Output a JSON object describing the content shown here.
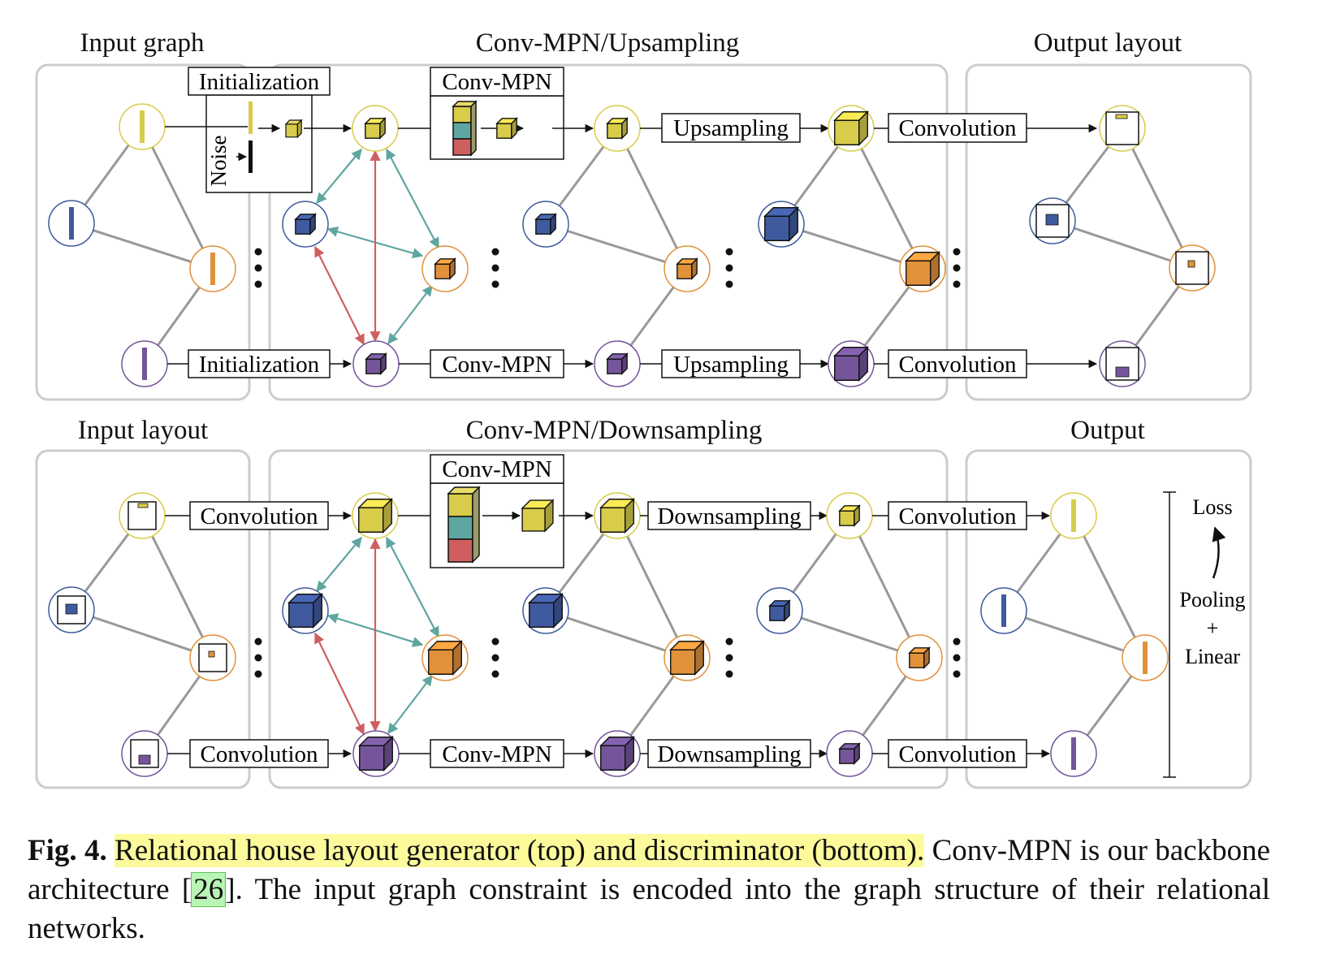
{
  "top": {
    "titles": {
      "input": "Input graph",
      "middle": "Conv-MPN/Upsampling",
      "output": "Output layout"
    },
    "labels": {
      "init_top": "Initialization",
      "init_bottom": "Initialization",
      "noise": "Noise",
      "convmpn_top": "Conv-MPN",
      "convmpn_bottom": "Conv-MPN",
      "up_top": "Upsampling",
      "up_bottom": "Upsampling",
      "conv_top": "Convolution",
      "conv_bottom": "Convolution"
    }
  },
  "bottom": {
    "titles": {
      "input": "Input layout",
      "middle": "Conv-MPN/Downsampling",
      "output": "Output"
    },
    "labels": {
      "conv1_top": "Convolution",
      "conv1_bottom": "Convolution",
      "convmpn_top": "Conv-MPN",
      "convmpn_bottom": "Conv-MPN",
      "down_top": "Downsampling",
      "down_bottom": "Downsampling",
      "conv2_top": "Convolution",
      "conv2_bottom": "Convolution"
    },
    "side": {
      "loss": "Loss",
      "pooling": "Pooling",
      "plus": "+",
      "linear": "Linear"
    }
  },
  "caption": {
    "fig_label": "Fig. 4.",
    "highlight": "Relational house layout generator (top) and discriminator (bottom).",
    "text1": "Conv-MPN is our backbone architecture [",
    "cite": "26",
    "text2": "]. The input graph constraint is encoded into the graph structure of their relational networks."
  },
  "colors": {
    "yellow": "#d8cc4a",
    "blue": "#3f5a9e",
    "orange": "#e0913a",
    "purple": "#74559a",
    "red": "#cf5f5f",
    "teal": "#5fa6a0",
    "panel_border": "#cccccc",
    "edge_gray": "#999999"
  }
}
